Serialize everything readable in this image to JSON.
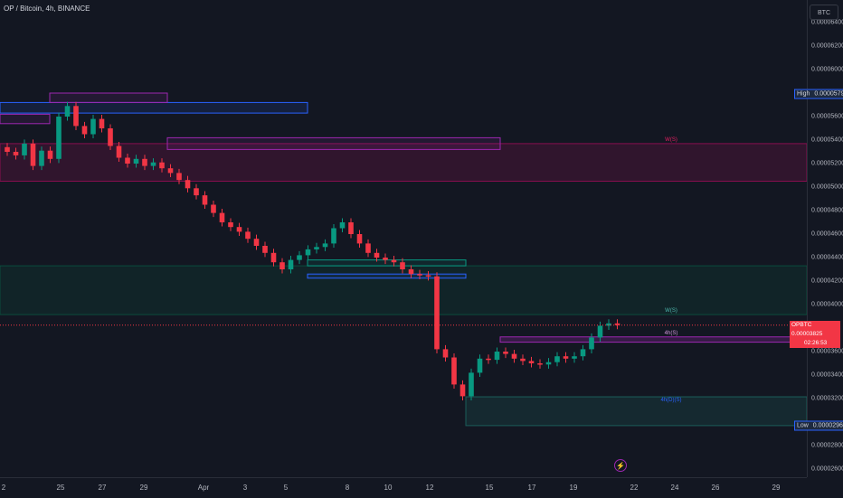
{
  "header": {
    "title": "OP / Bitcoin, 4h, BINANCE"
  },
  "toolbar": {
    "currency_label": "BTC"
  },
  "price_axis": {
    "ticks": [
      {
        "label": "0.00006400",
        "value": 6400
      },
      {
        "label": "0.00006200",
        "value": 6200
      },
      {
        "label": "0.00006000",
        "value": 6000
      },
      {
        "label": "0.00005600",
        "value": 5600
      },
      {
        "label": "0.00005400",
        "value": 5400
      },
      {
        "label": "0.00005200",
        "value": 5200
      },
      {
        "label": "0.00005000",
        "value": 5000
      },
      {
        "label": "0.00004800",
        "value": 4800
      },
      {
        "label": "0.00004600",
        "value": 4600
      },
      {
        "label": "0.00004400",
        "value": 4400
      },
      {
        "label": "0.00004200",
        "value": 4200
      },
      {
        "label": "0.00004000",
        "value": 4000
      },
      {
        "label": "0.00003600",
        "value": 3600
      },
      {
        "label": "0.00003400",
        "value": 3400
      },
      {
        "label": "0.00003200",
        "value": 3200
      },
      {
        "label": "0.00002800",
        "value": 2800
      },
      {
        "label": "0.00002600",
        "value": 2600
      }
    ],
    "high": {
      "label": "High",
      "value_label": "0.00005791",
      "value": 5791
    },
    "low": {
      "label": "Low",
      "value_label": "0.00002969",
      "value": 2969
    },
    "current": {
      "symbol": "OPBTC",
      "price": "0.00003825",
      "value": 3825,
      "countdown": "02:26:53"
    }
  },
  "time_axis": {
    "labels": [
      {
        "label": "2",
        "index": 0
      },
      {
        "label": "25",
        "index": 6
      },
      {
        "label": "27",
        "index": 18
      },
      {
        "label": "29",
        "index": 30
      },
      {
        "label": "Apr",
        "index": 42
      },
      {
        "label": "3",
        "index": 54
      },
      {
        "label": "5",
        "index": 66
      },
      {
        "label": "8",
        "index": 84
      },
      {
        "label": "10",
        "index": 96
      },
      {
        "label": "12",
        "index": 108
      },
      {
        "label": "15",
        "index": 126
      },
      {
        "label": "17",
        "index": 138
      },
      {
        "label": "19",
        "index": 150
      },
      {
        "label": "22",
        "index": 168
      },
      {
        "label": "24",
        "index": 180
      },
      {
        "label": "26",
        "index": 192
      },
      {
        "label": "29",
        "index": 210
      }
    ]
  },
  "zones": [
    {
      "label": "W(S)",
      "top": 5050,
      "bottom": 5370,
      "color": "#880e4f"
    },
    {
      "label": "W(S)",
      "top": 4330,
      "bottom": 3915,
      "color": "#0a4d3c"
    },
    {
      "label": "4h(S)",
      "top": 3725,
      "bottom": 3680,
      "color": "#9c27b0"
    },
    {
      "label": "4h(D)(S)",
      "top": 3215,
      "bottom": 2970,
      "color": "#1b5e5a"
    }
  ],
  "colors": {
    "up": "#089981",
    "down": "#f23645",
    "background": "#131722"
  },
  "icons": {
    "flash": "lightning-icon"
  },
  "chart_data": {
    "type": "candlestick",
    "title": "OP / Bitcoin, 4h, BINANCE",
    "ylim": [
      2600,
      6400
    ],
    "ohlc_closes_approx": [
      5300,
      5270,
      5370,
      5180,
      5310,
      5240,
      5600,
      5690,
      5520,
      5450,
      5580,
      5500,
      5350,
      5250,
      5200,
      5240,
      5180,
      5210,
      5160,
      5120,
      5060,
      4990,
      4930,
      4850,
      4780,
      4700,
      4660,
      4620,
      4560,
      4500,
      4440,
      4360,
      4300,
      4380,
      4420,
      4470,
      4490,
      4520,
      4650,
      4700,
      4600,
      4520,
      4440,
      4400,
      4380,
      4360,
      4300,
      4260,
      4250,
      4240,
      3620,
      3550,
      3320,
      3220,
      3420,
      3540,
      3530,
      3600,
      3580,
      3540,
      3520,
      3500,
      3490,
      3510,
      3560,
      3540,
      3560,
      3620,
      3720,
      3820,
      3840,
      3825
    ],
    "high": 5791,
    "low": 2969,
    "current": 3825
  }
}
